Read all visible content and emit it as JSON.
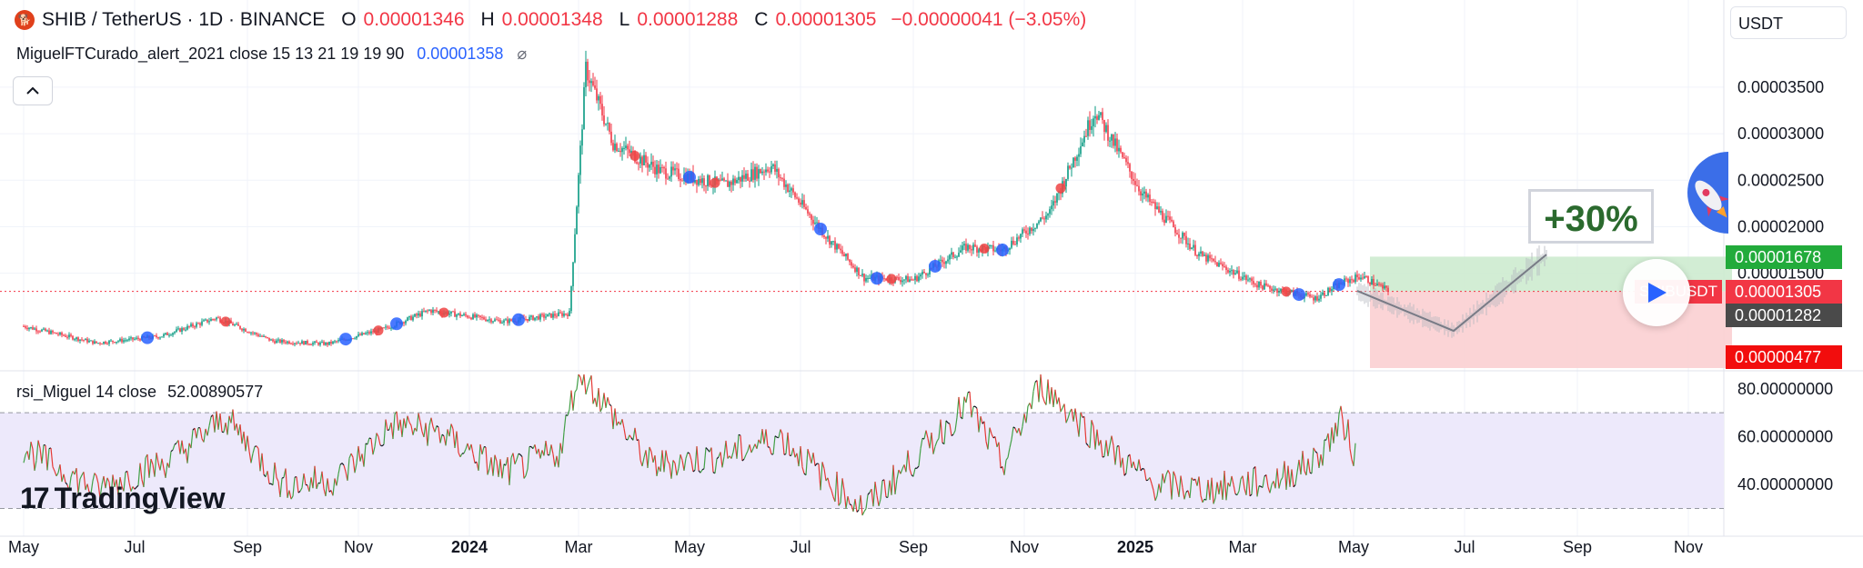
{
  "header": {
    "symbol": "SHIB / TetherUS · 1D · BINANCE",
    "open_label": "O",
    "open_value": "0.00001346",
    "high_label": "H",
    "high_value": "0.00001348",
    "low_label": "L",
    "low_value": "0.00001288",
    "close_label": "C",
    "close_value": "0.00001305",
    "change": "−0.00000041 (−3.05%)"
  },
  "indicator": {
    "label": "MiguelFTCurado_alert_2021 close 15 13 21 19 19 90",
    "value": "0.00001358",
    "icon": "⌀"
  },
  "rsi_label": {
    "label": "rsi_Miguel 14 close",
    "value": "52.00890577"
  },
  "currency": "USDT",
  "projection": {
    "percent_label": "+30%",
    "symbol_tag": "SHIBUSDT",
    "target_price": "0.00001678",
    "current_price": "0.00001305",
    "marker_price": "0.00001282",
    "stop_price": "0.00000477"
  },
  "logo": {
    "text": "TradingView",
    "mark": "17"
  },
  "colors": {
    "up": "#089981",
    "down": "#f23645",
    "signal_buy": "#2962ff",
    "signal_sell": "#ef4444",
    "rsi_band": "#ede9fb",
    "profit_zone": "#cdebcf",
    "loss_zone": "#fbcfd1",
    "target_tag": "#22ab3b",
    "marker_tag": "#4a4a4a",
    "stop_tag": "#f23645"
  },
  "chart_data": [
    {
      "type": "line",
      "title": "SHIB / TetherUS · 1D · BINANCE",
      "x_tick_labels": [
        "May",
        "Jul",
        "Sep",
        "Nov",
        "2024",
        "Mar",
        "May",
        "Jul",
        "Sep",
        "Nov",
        "2025",
        "Mar",
        "May",
        "Jul",
        "Sep",
        "Nov"
      ],
      "y_tick_labels": [
        "0.00003500",
        "0.00003000",
        "0.00002500",
        "0.00002000",
        "0.00001500"
      ],
      "ylim": [
        4.8e-06,
        3.9e-05
      ],
      "series": [
        {
          "x": [
            "2023-05-01",
            "2023-06-10",
            "2023-07-15",
            "2023-08-15",
            "2023-09-15",
            "2023-10-15",
            "2023-11-15",
            "2023-12-10",
            "2024-01-20",
            "2024-02-25",
            "2024-03-05",
            "2024-03-20",
            "2024-04-15",
            "2024-05-20",
            "2024-06-15",
            "2024-07-15",
            "2024-08-05",
            "2024-09-01",
            "2024-09-30",
            "2024-10-20",
            "2024-11-15",
            "2024-12-10",
            "2025-01-05",
            "2025-02-05",
            "2025-03-10",
            "2025-04-10",
            "2025-04-25",
            "2025-05-05",
            "2025-05-20"
          ],
          "values": [
            9.3e-06,
            7.5e-06,
            8.2e-06,
            1.02e-05,
            7.7e-06,
            7.4e-06,
            9e-06,
            1.1e-05,
            9.8e-06,
            1.07e-05,
            3.7e-05,
            2.9e-05,
            2.6e-05,
            2.45e-05,
            2.65e-05,
            1.9e-05,
            1.45e-05,
            1.43e-05,
            1.78e-05,
            1.75e-05,
            2.15e-05,
            3.25e-05,
            2.35e-05,
            1.7e-05,
            1.37e-05,
            1.23e-05,
            1.4e-05,
            1.47e-05,
            1.31e-05
          ],
          "y_unit": "USDT"
        }
      ],
      "annotations": [
        "+30%",
        "0.00001678",
        "0.00001305",
        "0.00001282",
        "0.00000477"
      ]
    },
    {
      "type": "line",
      "title": "rsi_Miguel 14 close",
      "y_tick_labels": [
        "80.00000000",
        "60.00000000",
        "40.00000000"
      ],
      "ylim": [
        26,
        86
      ],
      "band": [
        30,
        70
      ],
      "series": [
        {
          "x": [
            "2023-05-01",
            "2023-06-10",
            "2023-07-20",
            "2023-08-20",
            "2023-09-20",
            "2023-10-20",
            "2023-11-20",
            "2023-12-15",
            "2024-01-20",
            "2024-02-20",
            "2024-03-01",
            "2024-04-10",
            "2024-05-20",
            "2024-06-20",
            "2024-07-15",
            "2024-08-05",
            "2024-09-01",
            "2024-10-01",
            "2024-10-20",
            "2024-11-10",
            "2024-12-10",
            "2025-01-10",
            "2025-02-10",
            "2025-03-20",
            "2025-04-10",
            "2025-04-25",
            "2025-05-02"
          ],
          "values": [
            55,
            38,
            50,
            68,
            40,
            42,
            65,
            62,
            45,
            54,
            88,
            48,
            52,
            60,
            42,
            30,
            50,
            74,
            48,
            82,
            60,
            40,
            38,
            42,
            50,
            67,
            52
          ]
        }
      ]
    }
  ]
}
